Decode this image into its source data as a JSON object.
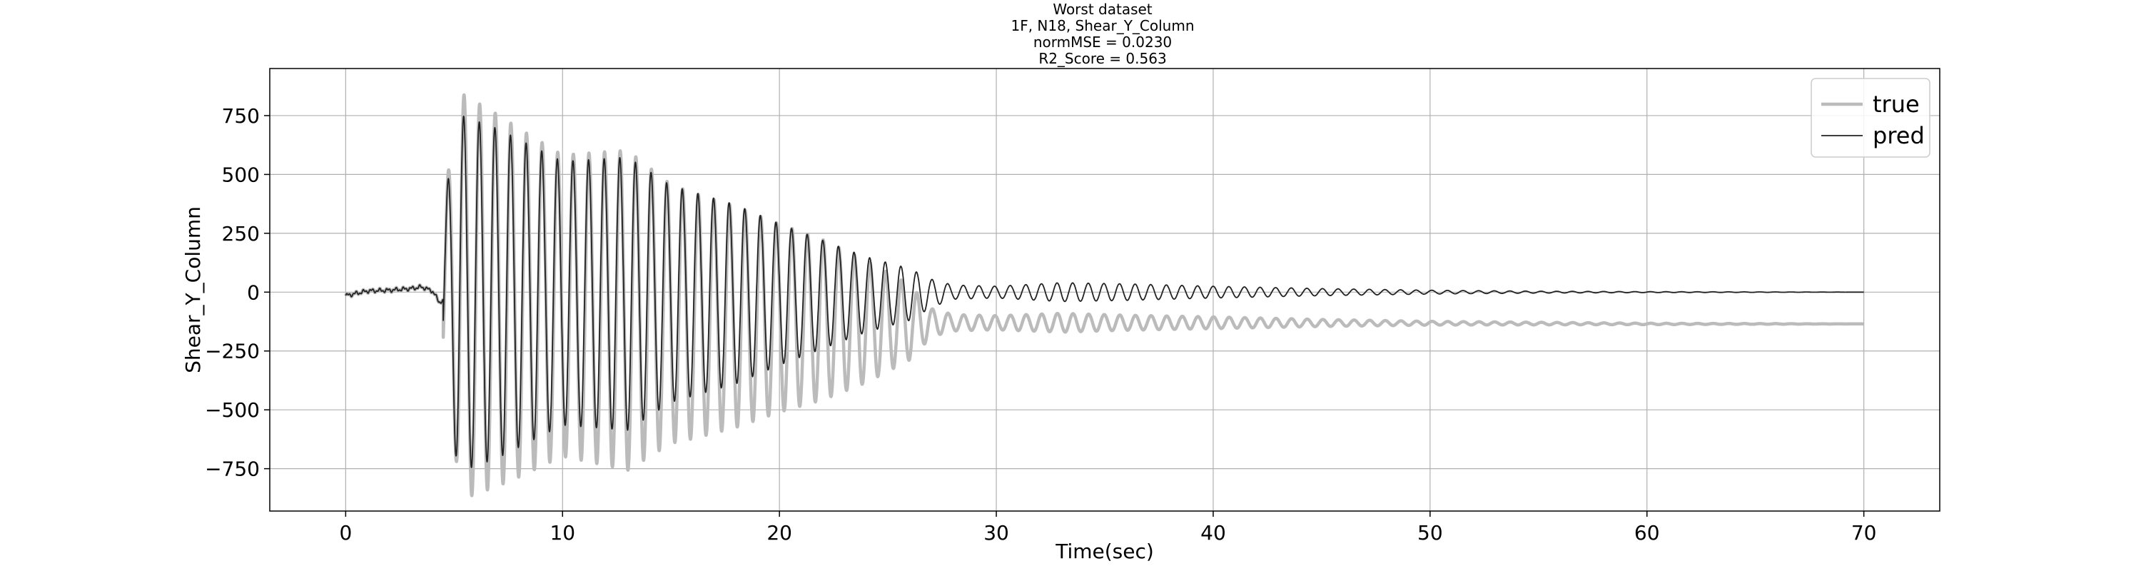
{
  "chart_data": {
    "type": "line",
    "title_lines": [
      "Worst dataset",
      "1F, N18, Shear_Y_Column",
      "normMSE = 0.0230",
      "R2_Score = 0.563"
    ],
    "xlabel": "Time(sec)",
    "ylabel": "Shear_Y_Column",
    "xlim": [
      -3.5,
      73.5
    ],
    "ylim": [
      -930,
      950
    ],
    "xticks": [
      0,
      10,
      20,
      30,
      40,
      50,
      60,
      70
    ],
    "yticks": [
      -750,
      -500,
      -250,
      0,
      250,
      500,
      750
    ],
    "ytick_labels": [
      "−750",
      "−500",
      "−250",
      "0",
      "250",
      "500",
      "750"
    ],
    "grid": true,
    "legend_position": "top-right",
    "x_end": 70,
    "series": [
      {
        "name": "true",
        "color": "#bbbbbb",
        "envelope_x": [
          4.5,
          5.4,
          7,
          10,
          13,
          15,
          18,
          20,
          22,
          24,
          26,
          27,
          28,
          30,
          33,
          36,
          40,
          45,
          50,
          60,
          70
        ],
        "envelope_amp": [
          400,
          860,
          790,
          640,
          680,
          550,
          470,
          400,
          340,
          260,
          160,
          60,
          35,
          30,
          40,
          32,
          25,
          15,
          8,
          3,
          0
        ],
        "offset_x": [
          4.5,
          5.5,
          8,
          12,
          16,
          20,
          24,
          27,
          28,
          30,
          40,
          50,
          60,
          70
        ],
        "offset_y": [
          0,
          -20,
          -45,
          -70,
          -100,
          -110,
          -125,
          -130,
          -130,
          -130,
          -130,
          -132,
          -135,
          -135
        ]
      },
      {
        "name": "pred",
        "color": "#222222",
        "envelope_x": [
          4.5,
          5.2,
          7,
          10,
          13,
          15,
          18,
          20,
          22,
          24,
          26,
          27,
          28,
          30,
          33,
          36,
          40,
          45,
          50,
          55,
          60,
          70
        ],
        "envelope_amp": [
          350,
          760,
          700,
          560,
          580,
          460,
          380,
          300,
          230,
          160,
          110,
          60,
          30,
          25,
          40,
          35,
          25,
          15,
          8,
          4,
          2,
          0
        ],
        "offset_x": [
          4.5,
          5.5,
          10,
          20,
          26,
          28,
          70
        ],
        "offset_y": [
          0,
          -5,
          -5,
          -10,
          -10,
          0,
          0
        ]
      }
    ],
    "pre_event": {
      "x": [
        0,
        1,
        2,
        3,
        3.5,
        4,
        4.3
      ],
      "y": [
        -15,
        5,
        8,
        15,
        22,
        5,
        -40
      ]
    },
    "oscillation_period": 0.72
  }
}
